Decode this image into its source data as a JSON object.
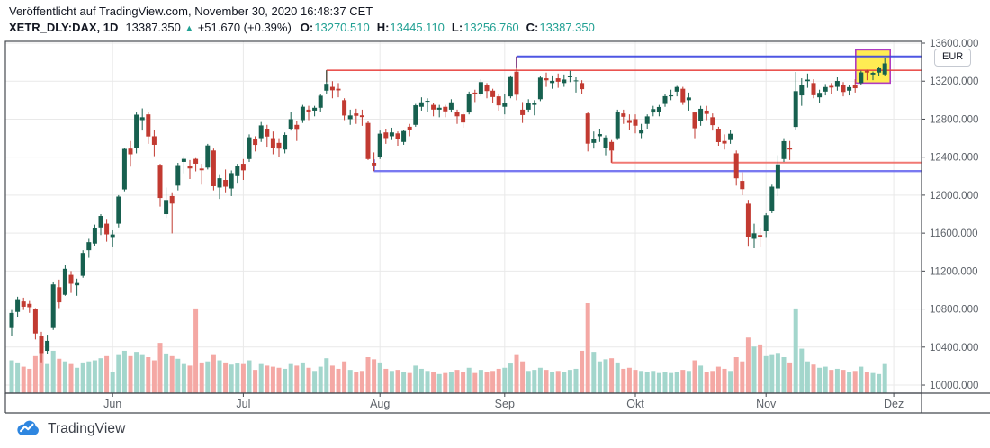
{
  "header": {
    "published_line": "Veröffentlicht auf TradingView.com, November 30, 2020 16:48:37 CET",
    "symbol": "XETR_DLY:DAX, 1D",
    "last_price": "13387.350",
    "arrow": "▲",
    "change": "+51.670 (+0.39%)",
    "ohlc": {
      "o_label": "O:",
      "o": "13270.510",
      "h_label": "H:",
      "h": "13445.110",
      "l_label": "L:",
      "l": "13256.760",
      "c_label": "C:",
      "c": "13387.350"
    }
  },
  "price_axis": {
    "currency_button": "EUR",
    "ticks": [
      {
        "label": "13600.000",
        "price": 13600
      },
      {
        "label": "13200.000",
        "price": 13200
      },
      {
        "label": "12800.000",
        "price": 12800
      },
      {
        "label": "12400.000",
        "price": 12400
      },
      {
        "label": "12000.000",
        "price": 12000
      },
      {
        "label": "11600.000",
        "price": 11600
      },
      {
        "label": "11200.000",
        "price": 11200
      },
      {
        "label": "10800.000",
        "price": 10800
      },
      {
        "label": "10400.000",
        "price": 10400
      },
      {
        "label": "10000.000",
        "price": 10000
      }
    ]
  },
  "time_axis": {
    "months": [
      {
        "label": "Jun",
        "idx": 17
      },
      {
        "label": "Jul",
        "idx": 39
      },
      {
        "label": "Aug",
        "idx": 62
      },
      {
        "label": "Sep",
        "idx": 83
      },
      {
        "label": "Okt",
        "idx": 105
      },
      {
        "label": "Nov",
        "idx": 127
      },
      {
        "label": "Dez",
        "idx": 148.5
      }
    ]
  },
  "footer": {
    "brand": "TradingView"
  },
  "colors": {
    "candle_up": "#17604f",
    "candle_down": "#c23a31",
    "vol_up": "#a3d6cc",
    "vol_down": "#f4a8a4",
    "grid": "#e9e9e9",
    "frame": "#45494f",
    "axis_text": "#5d6269",
    "teal": "#21a093",
    "header_text": "#131722",
    "logo_blue": "#2e86e0"
  },
  "chart_data": {
    "type": "candlestick+volume",
    "title": "XETR_DLY:DAX 1D — May to November 2020",
    "ylabel": "EUR",
    "ylim": [
      9915,
      13619
    ],
    "y_ticks": [
      13600,
      13200,
      12800,
      12400,
      12000,
      11600,
      11200,
      10800,
      10400,
      10000
    ],
    "grid": true,
    "vol_max": 170,
    "ohlc_columns": [
      "open",
      "high",
      "low",
      "close",
      "volume"
    ],
    "candles": [
      [
        10600,
        10790,
        10520,
        10759,
        62
      ],
      [
        10770,
        10930,
        10720,
        10904,
        58
      ],
      [
        10880,
        10920,
        10790,
        10825,
        50
      ],
      [
        10855,
        10885,
        10760,
        10820,
        46
      ],
      [
        10800,
        10810,
        10480,
        10543,
        70
      ],
      [
        10520,
        10560,
        10240,
        10337,
        76
      ],
      [
        10360,
        10530,
        10330,
        10465,
        55
      ],
      [
        10600,
        11090,
        10580,
        11059,
        80
      ],
      [
        11030,
        11110,
        10810,
        10871,
        65
      ],
      [
        10950,
        11260,
        10940,
        11224,
        60
      ],
      [
        11160,
        11200,
        10970,
        11066,
        55
      ],
      [
        11050,
        11120,
        10940,
        11074,
        48
      ],
      [
        11150,
        11420,
        11130,
        11391,
        58
      ],
      [
        11420,
        11540,
        11340,
        11505,
        60
      ],
      [
        11490,
        11690,
        11460,
        11657,
        62
      ],
      [
        11660,
        11800,
        11580,
        11781,
        66
      ],
      [
        11700,
        11750,
        11510,
        11587,
        70
      ],
      [
        11550,
        11630,
        11450,
        11586,
        40
      ],
      [
        11700,
        12000,
        11660,
        11985,
        72
      ],
      [
        12060,
        12500,
        12040,
        12487,
        80
      ],
      [
        12490,
        12570,
        12300,
        12430,
        70
      ],
      [
        12500,
        12870,
        12440,
        12847,
        78
      ],
      [
        12790,
        12913,
        12680,
        12820,
        72
      ],
      [
        12850,
        12880,
        12540,
        12618,
        68
      ],
      [
        12620,
        12690,
        12410,
        12530,
        62
      ],
      [
        12320,
        12330,
        11880,
        11970,
        95
      ],
      [
        11800,
        12080,
        11760,
        11949,
        75
      ],
      [
        11990,
        12030,
        11597,
        11911,
        70
      ],
      [
        12100,
        12340,
        12050,
        12316,
        65
      ],
      [
        12350,
        12410,
        12230,
        12382,
        55
      ],
      [
        12310,
        12370,
        12170,
        12281,
        52
      ],
      [
        12382,
        12390,
        12250,
        12331,
        160
      ],
      [
        12280,
        12330,
        12110,
        12262,
        58
      ],
      [
        12290,
        12540,
        12270,
        12523,
        60
      ],
      [
        12470,
        12490,
        12050,
        12094,
        72
      ],
      [
        12080,
        12220,
        11960,
        12178,
        62
      ],
      [
        12160,
        12270,
        12030,
        12089,
        58
      ],
      [
        12070,
        12260,
        11990,
        12232,
        54
      ],
      [
        12200,
        12330,
        12130,
        12311,
        56
      ],
      [
        12330,
        12380,
        12160,
        12261,
        55
      ],
      [
        12380,
        12640,
        12350,
        12609,
        62
      ],
      [
        12590,
        12620,
        12460,
        12529,
        44
      ],
      [
        12600,
        12770,
        12560,
        12734,
        55
      ],
      [
        12700,
        12740,
        12510,
        12617,
        52
      ],
      [
        12600,
        12670,
        12430,
        12495,
        50
      ],
      [
        12550,
        12600,
        12400,
        12490,
        48
      ],
      [
        12480,
        12660,
        12440,
        12634,
        46
      ],
      [
        12700,
        12880,
        12680,
        12800,
        55
      ],
      [
        12740,
        12780,
        12570,
        12697,
        52
      ],
      [
        12790,
        12950,
        12760,
        12931,
        58
      ],
      [
        12900,
        12940,
        12790,
        12874,
        48
      ],
      [
        12890,
        12940,
        12830,
        12920,
        42
      ],
      [
        12920,
        13060,
        12880,
        13047,
        50
      ],
      [
        13100,
        13314,
        13070,
        13172,
        66
      ],
      [
        13140,
        13200,
        13020,
        13104,
        52
      ],
      [
        13120,
        13180,
        13030,
        13103,
        46
      ],
      [
        13000,
        13020,
        12790,
        12838,
        60
      ],
      [
        12800,
        12900,
        12740,
        12839,
        44
      ],
      [
        12860,
        12910,
        12750,
        12835,
        40
      ],
      [
        12840,
        12900,
        12730,
        12822,
        42
      ],
      [
        12760,
        12780,
        12370,
        12380,
        68
      ],
      [
        12340,
        12450,
        12253,
        12313,
        64
      ],
      [
        12400,
        12680,
        12380,
        12647,
        58
      ],
      [
        12660,
        12700,
        12540,
        12601,
        46
      ],
      [
        12620,
        12710,
        12580,
        12660,
        42
      ],
      [
        12650,
        12670,
        12520,
        12591,
        44
      ],
      [
        12560,
        12690,
        12530,
        12675,
        40
      ],
      [
        12720,
        12750,
        12620,
        12687,
        38
      ],
      [
        12740,
        12960,
        12720,
        12946,
        52
      ],
      [
        12930,
        13030,
        12890,
        12977,
        46
      ],
      [
        12990,
        13020,
        12880,
        12993,
        42
      ],
      [
        12950,
        12970,
        12830,
        12901,
        40
      ],
      [
        12900,
        12950,
        12820,
        12920,
        36
      ],
      [
        12930,
        12950,
        12820,
        12882,
        38
      ],
      [
        12900,
        13010,
        12870,
        12977,
        40
      ],
      [
        12880,
        12900,
        12750,
        12830,
        44
      ],
      [
        12850,
        12870,
        12710,
        12765,
        40
      ],
      [
        12870,
        13090,
        12850,
        13067,
        48
      ],
      [
        13080,
        13110,
        12980,
        13061,
        38
      ],
      [
        13060,
        13220,
        13040,
        13190,
        44
      ],
      [
        13160,
        13180,
        13020,
        13096,
        40
      ],
      [
        13100,
        13120,
        12970,
        13033,
        42
      ],
      [
        13040,
        13070,
        12890,
        12945,
        46
      ],
      [
        12930,
        13060,
        12850,
        12974,
        48
      ],
      [
        13040,
        13260,
        13020,
        13243,
        56
      ],
      [
        13300,
        13460,
        13000,
        13057,
        72
      ],
      [
        12900,
        12980,
        12760,
        12843,
        60
      ],
      [
        12900,
        13010,
        12870,
        12968,
        42
      ],
      [
        12950,
        13000,
        12840,
        12968,
        44
      ],
      [
        13010,
        13250,
        12990,
        13237,
        48
      ],
      [
        13230,
        13290,
        13140,
        13209,
        44
      ],
      [
        13180,
        13260,
        13120,
        13203,
        40
      ],
      [
        13230,
        13280,
        13130,
        13194,
        42
      ],
      [
        13180,
        13270,
        13140,
        13217,
        40
      ],
      [
        13240,
        13310,
        13190,
        13255,
        44
      ],
      [
        13200,
        13240,
        13080,
        13208,
        46
      ],
      [
        13180,
        13210,
        13060,
        13116,
        80
      ],
      [
        12860,
        12870,
        12460,
        12542,
        170
      ],
      [
        12550,
        12670,
        12490,
        12594,
        78
      ],
      [
        12620,
        12700,
        12560,
        12643,
        60
      ],
      [
        12500,
        12630,
        12420,
        12607,
        64
      ],
      [
        12560,
        12580,
        12342,
        12469,
        66
      ],
      [
        12600,
        12900,
        12580,
        12871,
        58
      ],
      [
        12860,
        12900,
        12750,
        12825,
        46
      ],
      [
        12790,
        12850,
        12690,
        12761,
        48
      ],
      [
        12800,
        12850,
        12650,
        12731,
        44
      ],
      [
        12650,
        12750,
        12600,
        12689,
        42
      ],
      [
        12750,
        12850,
        12700,
        12829,
        40
      ],
      [
        12870,
        12940,
        12830,
        12906,
        42
      ],
      [
        12880,
        12950,
        12830,
        12928,
        38
      ],
      [
        12960,
        13060,
        12930,
        13042,
        40
      ],
      [
        13040,
        13110,
        13000,
        13051,
        38
      ],
      [
        13090,
        13150,
        13040,
        13139,
        40
      ],
      [
        13120,
        13140,
        12950,
        12979,
        44
      ],
      [
        13000,
        13080,
        12890,
        13028,
        42
      ],
      [
        12870,
        12880,
        12600,
        12704,
        62
      ],
      [
        12780,
        12940,
        12730,
        12909,
        52
      ],
      [
        12890,
        12940,
        12790,
        12855,
        40
      ],
      [
        12820,
        12860,
        12680,
        12737,
        42
      ],
      [
        12700,
        12720,
        12520,
        12558,
        50
      ],
      [
        12570,
        12640,
        12480,
        12543,
        46
      ],
      [
        12580,
        12690,
        12540,
        12646,
        42
      ],
      [
        12440,
        12470,
        12100,
        12177,
        68
      ],
      [
        12150,
        12240,
        12000,
        12063,
        60
      ],
      [
        11910,
        11950,
        11457,
        11561,
        105
      ],
      [
        11540,
        11700,
        11440,
        11598,
        88
      ],
      [
        11580,
        11650,
        11450,
        11556,
        92
      ],
      [
        11620,
        11810,
        11550,
        11788,
        70
      ],
      [
        11830,
        12110,
        11810,
        12089,
        72
      ],
      [
        12070,
        12420,
        11990,
        12324,
        76
      ],
      [
        12380,
        12600,
        12350,
        12568,
        68
      ],
      [
        12500,
        12570,
        12370,
        12480,
        58
      ],
      [
        12718,
        13297,
        12690,
        13095,
        160
      ],
      [
        13050,
        13230,
        12940,
        13163,
        84
      ],
      [
        13200,
        13280,
        13130,
        13216,
        60
      ],
      [
        13180,
        13220,
        13020,
        13052,
        54
      ],
      [
        13030,
        13110,
        12970,
        13077,
        48
      ],
      [
        13090,
        13170,
        13050,
        13138,
        50
      ],
      [
        13150,
        13180,
        13060,
        13133,
        44
      ],
      [
        13140,
        13240,
        13100,
        13202,
        46
      ],
      [
        13160,
        13190,
        13040,
        13086,
        44
      ],
      [
        13100,
        13160,
        13050,
        13137,
        40
      ],
      [
        13160,
        13220,
        13080,
        13126,
        42
      ],
      [
        13180,
        13310,
        13160,
        13292,
        50
      ],
      [
        13310,
        13320,
        13210,
        13290,
        40
      ],
      [
        13270,
        13300,
        13210,
        13287,
        38
      ],
      [
        13290,
        13350,
        13250,
        13335,
        36
      ],
      [
        13271,
        13445,
        13257,
        13387,
        55
      ]
    ],
    "rays": [
      {
        "name": "resistance-upper-red",
        "price": 13314,
        "from_index": 53,
        "color": "#e8403d",
        "width": 1.6,
        "tick_dir": 1
      },
      {
        "name": "resistance-upper-blue",
        "price": 13460,
        "from_index": 85,
        "color": "#3a44e0",
        "width": 2,
        "tick_dir": 1
      },
      {
        "name": "support-lower-red",
        "price": 12342,
        "from_index": 101,
        "color": "#ef6a64",
        "width": 2,
        "tick_dir": -1
      },
      {
        "name": "support-lower-blue",
        "price": 12253,
        "from_index": 61,
        "color": "#6a6af0",
        "width": 2.4,
        "tick_dir": -1
      }
    ],
    "highlight_box": {
      "from_index": 143,
      "to_index": 147,
      "price_top": 13530,
      "price_bottom": 13180,
      "fill": "#ffe93b",
      "fill_opacity": 0.88,
      "border": "#b03bc4"
    }
  }
}
